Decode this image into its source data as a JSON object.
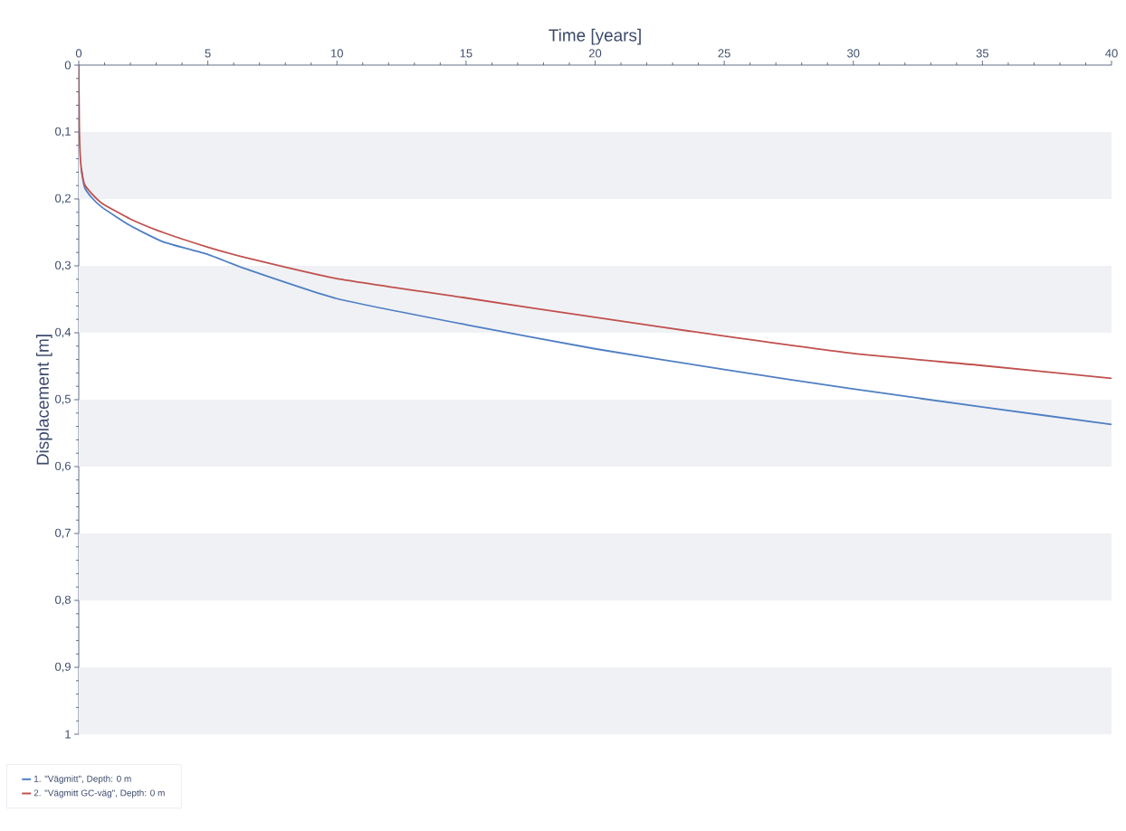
{
  "chart_data": {
    "type": "line",
    "xlabel": "Time [years]",
    "ylabel": "Displacement [m]",
    "xlim": [
      0,
      40
    ],
    "xticks": [
      0,
      5,
      10,
      15,
      20,
      25,
      30,
      35,
      40
    ],
    "ylim": [
      1,
      0
    ],
    "yticks": [
      0,
      {
        "value": 0.1,
        "label": "0,1"
      },
      {
        "value": 0.2,
        "label": "0,2"
      },
      {
        "value": 0.3,
        "label": "0,3"
      },
      {
        "value": 0.4,
        "label": "0,4"
      },
      {
        "value": 0.5,
        "label": "0,5"
      },
      {
        "value": 0.6,
        "label": "0,6"
      },
      {
        "value": 0.7,
        "label": "0,7"
      },
      {
        "value": 0.8,
        "label": "0,8"
      },
      {
        "value": 0.9,
        "label": "0,9"
      },
      1
    ],
    "x": [
      0,
      0.02,
      0.05,
      0.1,
      0.22,
      0.5,
      0.92,
      2,
      3.26,
      5,
      6.5,
      10,
      15,
      20,
      25,
      30,
      35,
      40
    ],
    "series": [
      {
        "name": "1. \"Vägmitt\", Depth: 0 m",
        "color": "#4f7fc4",
        "values": [
          null,
          null,
          null,
          0.155,
          0.182,
          0.198,
          0.213,
          0.24,
          0.264,
          0.283,
          0.305,
          0.349,
          0.388,
          0.424,
          0.455,
          0.484,
          0.511,
          0.537
        ]
      },
      {
        "name": "2. \"Vägmitt GC-väg\", Depth: 0 m",
        "color": "#c0504d",
        "values": [
          0,
          0.09,
          0.13,
          0.155,
          0.178,
          0.192,
          0.207,
          0.23,
          0.25,
          0.272,
          0.288,
          0.319,
          0.348,
          0.377,
          0.405,
          0.431,
          0.449,
          0.468
        ]
      }
    ],
    "bands": [
      {
        "axis": "y",
        "from": 0.1,
        "to": 0.2,
        "color": "#f0f1f5"
      },
      {
        "axis": "y",
        "from": 0.3,
        "to": 0.4,
        "color": "#f0f1f5"
      },
      {
        "axis": "y",
        "from": 0.5,
        "to": 0.6,
        "color": "#f0f1f5"
      },
      {
        "axis": "y",
        "from": 0.7,
        "to": 0.8,
        "color": "#f0f1f5"
      },
      {
        "axis": "y",
        "from": 0.9,
        "to": 1,
        "color": "#f0f1f5"
      }
    ],
    "grid": false,
    "legend": "bottom left",
    "marker": "none",
    "line_style": "solid"
  }
}
